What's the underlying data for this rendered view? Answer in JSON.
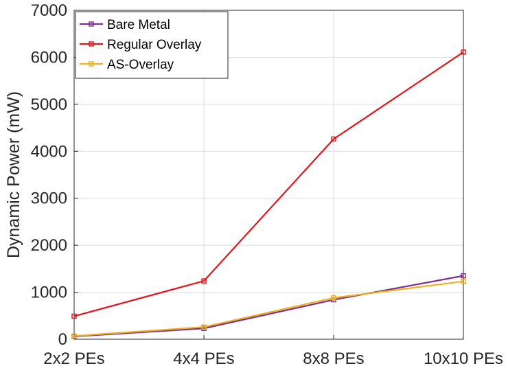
{
  "chart_data": {
    "type": "line",
    "title": "",
    "xlabel": "",
    "ylabel": "Dynamic Power (mW)",
    "categories": [
      "2x2 PEs",
      "4x4 PEs",
      "8x8 PEs",
      "10x10 PEs"
    ],
    "ylim": [
      0,
      7000
    ],
    "yticks": [
      0,
      1000,
      2000,
      3000,
      4000,
      5000,
      6000,
      7000
    ],
    "grid": true,
    "legend_position": "top-left",
    "series": [
      {
        "name": "Bare Metal",
        "color": "#7E2F8E",
        "marker": "square",
        "values": [
          60,
          230,
          840,
          1350
        ]
      },
      {
        "name": "Regular Overlay",
        "color": "#E8141B",
        "marker": "square",
        "values": [
          490,
          1240,
          4260,
          6110
        ]
      },
      {
        "name": "AS-Overlay",
        "color": "#EDB120",
        "marker": "square",
        "values": [
          70,
          260,
          880,
          1230
        ]
      }
    ]
  }
}
